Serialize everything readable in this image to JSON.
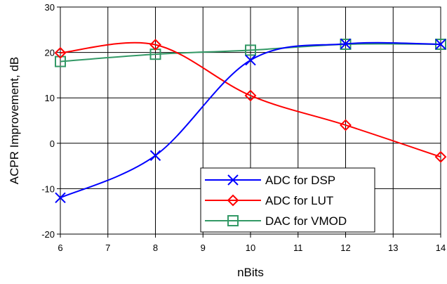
{
  "chart_data": {
    "type": "line",
    "xlabel": "nBits",
    "ylabel": "ACPR Improvement, dB",
    "xlim": [
      6,
      14
    ],
    "ylim": [
      -20,
      30
    ],
    "xticks": [
      "6",
      "7",
      "8",
      "9",
      "10",
      "11",
      "12",
      "13",
      "14"
    ],
    "yticks": [
      "-20",
      "-10",
      "0",
      "10",
      "20",
      "30"
    ],
    "grid": true,
    "legend_position": "bottom-right",
    "series": [
      {
        "name": "ADC for DSP",
        "color": "#0000ff",
        "marker": "x",
        "x": [
          6,
          8,
          10,
          12,
          14
        ],
        "y": [
          -12,
          -2.7,
          18.3,
          21.9,
          21.8
        ]
      },
      {
        "name": "ADC for LUT",
        "color": "#ff0000",
        "marker": "diamond",
        "x": [
          6,
          8,
          10,
          12,
          14
        ],
        "y": [
          19.9,
          21.7,
          10.5,
          4,
          -3
        ]
      },
      {
        "name": "DAC for VMOD",
        "color": "#339966",
        "marker": "square",
        "x": [
          6,
          8,
          10,
          12,
          14
        ],
        "y": [
          18,
          19.6,
          20.5,
          21.8,
          21.8
        ]
      }
    ]
  }
}
